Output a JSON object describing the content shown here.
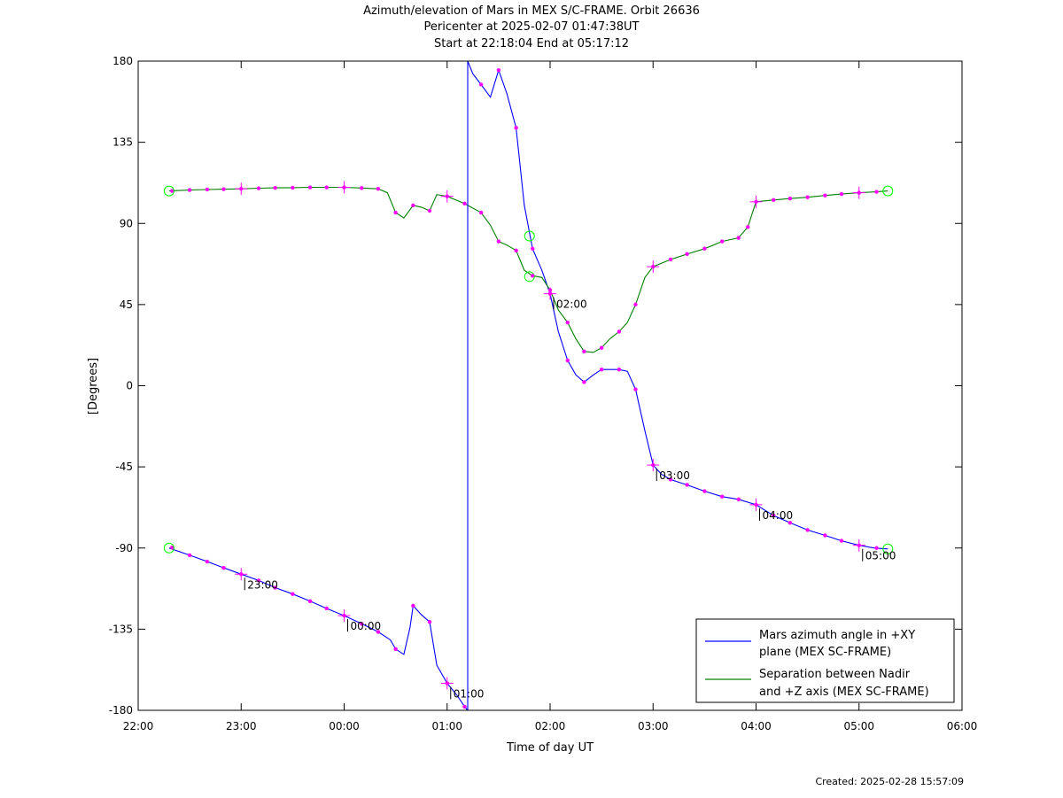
{
  "header": {
    "title": "Azimuth/elevation of Mars in MEX S/C-FRAME.  Orbit 26636",
    "pericenter": "Pericenter at 2025-02-07 01:47:38UT",
    "start_end": "Start at 22:18:04 End at 05:17:12"
  },
  "footer": {
    "created": "Created: 2025-02-28 15:57:09"
  },
  "colors": {
    "azimuth": "#0000ff",
    "separation": "#008000",
    "marker": "#ff00ff",
    "endpoint": "#00ff00",
    "annotation": "#000000"
  },
  "chart_data": {
    "type": "line",
    "xlabel": "Time of day UT",
    "ylabel": "[Degrees]",
    "xlim": [
      -2,
      6
    ],
    "ylim": [
      -180,
      180
    ],
    "x_ticks": [
      {
        "value": -2,
        "label": "22:00"
      },
      {
        "value": -1,
        "label": "23:00"
      },
      {
        "value": 0,
        "label": "00:00"
      },
      {
        "value": 1,
        "label": "01:00"
      },
      {
        "value": 2,
        "label": "02:00"
      },
      {
        "value": 3,
        "label": "03:00"
      },
      {
        "value": 4,
        "label": "04:00"
      },
      {
        "value": 5,
        "label": "05:00"
      },
      {
        "value": 6,
        "label": "06:00"
      }
    ],
    "y_ticks": [
      {
        "value": 180,
        "label": "180"
      },
      {
        "value": 135,
        "label": "135"
      },
      {
        "value": 90,
        "label": "90"
      },
      {
        "value": 45,
        "label": "45"
      },
      {
        "value": 0,
        "label": "0"
      },
      {
        "value": -45,
        "label": "-45"
      },
      {
        "value": -90,
        "label": "-90"
      },
      {
        "value": -135,
        "label": "-135"
      },
      {
        "value": -180,
        "label": "-180"
      }
    ],
    "legend_position": "bottom-right",
    "series": [
      {
        "name": "Mars azimuth angle in +XY plane (MEX SC-FRAME)",
        "legend_lines": [
          "Mars azimuth angle in +XY",
          "plane (MEX SC-FRAME)"
        ],
        "color": "#0000ff",
        "segments": [
          [
            [
              -1.7,
              -90
            ],
            [
              -1.5,
              -94
            ],
            [
              -1.33,
              -97.5
            ],
            [
              -1.17,
              -101
            ],
            [
              -1.0,
              -104.5
            ],
            [
              -0.83,
              -108
            ],
            [
              -0.67,
              -112
            ],
            [
              -0.5,
              -115.5
            ],
            [
              -0.33,
              -119.5
            ],
            [
              -0.17,
              -123.5
            ],
            [
              0.0,
              -127.5
            ],
            [
              0.17,
              -132
            ],
            [
              0.33,
              -136.5
            ],
            [
              0.45,
              -141
            ],
            [
              0.5,
              -146
            ],
            [
              0.58,
              -149
            ],
            [
              0.64,
              -134
            ],
            [
              0.67,
              -122
            ],
            [
              0.75,
              -127
            ],
            [
              0.83,
              -131
            ],
            [
              0.9,
              -155
            ],
            [
              1.0,
              -165
            ],
            [
              1.1,
              -172
            ],
            [
              1.17,
              -178
            ],
            [
              1.2,
              -180
            ]
          ],
          [
            [
              1.2,
              180
            ],
            [
              1.25,
              173
            ],
            [
              1.33,
              167
            ],
            [
              1.42,
              160
            ],
            [
              1.5,
              175
            ],
            [
              1.58,
              162
            ],
            [
              1.67,
              143
            ],
            [
              1.75,
              100
            ],
            [
              1.83,
              76
            ],
            [
              1.92,
              64
            ],
            [
              2.0,
              51
            ],
            [
              2.08,
              30
            ],
            [
              2.17,
              14
            ],
            [
              2.25,
              6
            ],
            [
              2.33,
              2
            ],
            [
              2.42,
              6
            ],
            [
              2.5,
              9
            ],
            [
              2.58,
              9
            ],
            [
              2.67,
              9
            ],
            [
              2.75,
              8
            ],
            [
              2.83,
              -2
            ],
            [
              2.92,
              -25
            ],
            [
              3.0,
              -44
            ],
            [
              3.08,
              -49
            ],
            [
              3.17,
              -52
            ],
            [
              3.33,
              -55
            ],
            [
              3.5,
              -58.5
            ],
            [
              3.67,
              -61.5
            ],
            [
              3.83,
              -63
            ],
            [
              4.0,
              -66
            ],
            [
              4.17,
              -72
            ],
            [
              4.33,
              -76
            ],
            [
              4.5,
              -80
            ],
            [
              4.67,
              -83
            ],
            [
              4.83,
              -86
            ],
            [
              5.0,
              -88.5
            ],
            [
              5.15,
              -90
            ],
            [
              5.28,
              -90.5
            ]
          ]
        ],
        "markers": [
          [
            -1.67,
            -89.7
          ],
          [
            -1.5,
            -94
          ],
          [
            -1.33,
            -97.5
          ],
          [
            -1.17,
            -101
          ],
          [
            -1.0,
            -104.5
          ],
          [
            -0.83,
            -108
          ],
          [
            -0.67,
            -112
          ],
          [
            -0.5,
            -115.5
          ],
          [
            -0.33,
            -119.5
          ],
          [
            -0.17,
            -123.5
          ],
          [
            0.0,
            -127.5
          ],
          [
            0.17,
            -132
          ],
          [
            0.33,
            -136.5
          ],
          [
            0.5,
            -146
          ],
          [
            0.67,
            -122
          ],
          [
            0.83,
            -131
          ],
          [
            1.0,
            -165
          ],
          [
            1.17,
            -178
          ],
          [
            1.33,
            167
          ],
          [
            1.5,
            175
          ],
          [
            1.67,
            143
          ],
          [
            1.83,
            76
          ],
          [
            2.0,
            51
          ],
          [
            2.17,
            14
          ],
          [
            2.33,
            2
          ],
          [
            2.5,
            9
          ],
          [
            2.67,
            9
          ],
          [
            2.83,
            -2
          ],
          [
            3.0,
            -44
          ],
          [
            3.17,
            -52
          ],
          [
            3.33,
            -55
          ],
          [
            3.5,
            -58.5
          ],
          [
            3.67,
            -61.5
          ],
          [
            3.83,
            -63
          ],
          [
            4.0,
            -66
          ],
          [
            4.17,
            -72
          ],
          [
            4.33,
            -76
          ],
          [
            4.5,
            -80
          ],
          [
            4.67,
            -83
          ],
          [
            4.83,
            -86
          ],
          [
            5.0,
            -88.5
          ],
          [
            5.17,
            -90
          ]
        ],
        "hour_crosses": [
          [
            -1.0,
            -104.5
          ],
          [
            0.0,
            -127.5
          ],
          [
            1.0,
            -165
          ],
          [
            2.0,
            51
          ],
          [
            3.0,
            -44
          ],
          [
            4.0,
            -66
          ],
          [
            5.0,
            -88.5
          ]
        ],
        "endpoints": [
          [
            -1.7,
            -90
          ],
          [
            1.8,
            60.5
          ],
          [
            5.28,
            -90.5
          ]
        ]
      },
      {
        "name": "Separation between Nadir and +Z axis (MEX SC-FRAME)",
        "legend_lines": [
          "Separation between Nadir",
          "and +Z axis (MEX SC-FRAME)"
        ],
        "color": "#008000",
        "segments": [
          [
            [
              -1.7,
              108
            ],
            [
              -1.5,
              108.5
            ],
            [
              -1.33,
              108.8
            ],
            [
              -1.17,
              109
            ],
            [
              -1.0,
              109.2
            ],
            [
              -0.83,
              109.5
            ],
            [
              -0.67,
              109.7
            ],
            [
              -0.5,
              109.8
            ],
            [
              -0.33,
              110
            ],
            [
              -0.17,
              110
            ],
            [
              0.0,
              110
            ],
            [
              0.17,
              109.6
            ],
            [
              0.33,
              109.2
            ],
            [
              0.42,
              107
            ],
            [
              0.5,
              96
            ],
            [
              0.58,
              93
            ],
            [
              0.67,
              100
            ],
            [
              0.75,
              99
            ],
            [
              0.83,
              97
            ],
            [
              0.9,
              106
            ],
            [
              1.0,
              105
            ],
            [
              1.17,
              101
            ],
            [
              1.33,
              96
            ],
            [
              1.42,
              89
            ],
            [
              1.5,
              80
            ],
            [
              1.58,
              78
            ],
            [
              1.67,
              75
            ],
            [
              1.75,
              64
            ],
            [
              1.83,
              61
            ],
            [
              1.92,
              60
            ],
            [
              2.0,
              53
            ],
            [
              2.08,
              42
            ],
            [
              2.17,
              35
            ],
            [
              2.25,
              26
            ],
            [
              2.33,
              19
            ],
            [
              2.42,
              18.5
            ],
            [
              2.5,
              21
            ],
            [
              2.58,
              26
            ],
            [
              2.67,
              30
            ],
            [
              2.75,
              35
            ],
            [
              2.83,
              45
            ],
            [
              2.92,
              60
            ],
            [
              3.0,
              66
            ],
            [
              3.17,
              70
            ],
            [
              3.33,
              73
            ],
            [
              3.5,
              76
            ],
            [
              3.67,
              80
            ],
            [
              3.83,
              82
            ],
            [
              3.92,
              88
            ],
            [
              4.0,
              102
            ],
            [
              4.17,
              103
            ],
            [
              4.33,
              103.8
            ],
            [
              4.5,
              104.5
            ],
            [
              4.67,
              105.5
            ],
            [
              4.83,
              106.3
            ],
            [
              5.0,
              107
            ],
            [
              5.17,
              107.5
            ],
            [
              5.28,
              108
            ]
          ]
        ],
        "markers": [
          [
            -1.67,
            108
          ],
          [
            -1.5,
            108.5
          ],
          [
            -1.33,
            108.8
          ],
          [
            -1.17,
            109
          ],
          [
            -1.0,
            109.2
          ],
          [
            -0.83,
            109.5
          ],
          [
            -0.67,
            109.7
          ],
          [
            -0.5,
            109.8
          ],
          [
            -0.33,
            110
          ],
          [
            -0.17,
            110
          ],
          [
            0.0,
            110
          ],
          [
            0.17,
            109.6
          ],
          [
            0.33,
            109.2
          ],
          [
            0.5,
            96
          ],
          [
            0.67,
            100
          ],
          [
            0.83,
            97
          ],
          [
            1.0,
            105
          ],
          [
            1.17,
            101
          ],
          [
            1.33,
            96
          ],
          [
            1.5,
            80
          ],
          [
            1.67,
            75
          ],
          [
            1.83,
            61
          ],
          [
            2.0,
            53
          ],
          [
            2.17,
            35
          ],
          [
            2.33,
            19
          ],
          [
            2.5,
            21
          ],
          [
            2.67,
            30
          ],
          [
            2.83,
            45
          ],
          [
            3.0,
            66
          ],
          [
            3.17,
            70
          ],
          [
            3.33,
            73
          ],
          [
            3.5,
            76
          ],
          [
            3.67,
            80
          ],
          [
            3.83,
            82
          ],
          [
            3.92,
            88
          ],
          [
            4.0,
            102
          ],
          [
            4.17,
            103
          ],
          [
            4.33,
            103.8
          ],
          [
            4.5,
            104.5
          ],
          [
            4.67,
            105.5
          ],
          [
            4.83,
            106.3
          ],
          [
            5.0,
            107
          ],
          [
            5.17,
            107.5
          ]
        ],
        "hour_crosses": [
          [
            -1.0,
            109.2
          ],
          [
            0.0,
            110
          ],
          [
            1.0,
            105
          ],
          [
            3.0,
            66
          ],
          [
            4.0,
            102
          ],
          [
            5.0,
            107
          ]
        ],
        "endpoints": [
          [
            -1.7,
            108
          ],
          [
            1.8,
            83
          ],
          [
            5.28,
            108
          ]
        ]
      }
    ],
    "annotations": [
      {
        "x": -1.0,
        "y": -104.5,
        "label": "23:00"
      },
      {
        "x": 0.0,
        "y": -127.5,
        "label": "00:00"
      },
      {
        "x": 1.0,
        "y": -165,
        "label": "01:00"
      },
      {
        "x": 2.0,
        "y": 51,
        "label": "02:00"
      },
      {
        "x": 3.0,
        "y": -44,
        "label": "03:00"
      },
      {
        "x": 4.0,
        "y": -66,
        "label": "04:00"
      },
      {
        "x": 5.0,
        "y": -88.5,
        "label": "05:00"
      }
    ]
  }
}
